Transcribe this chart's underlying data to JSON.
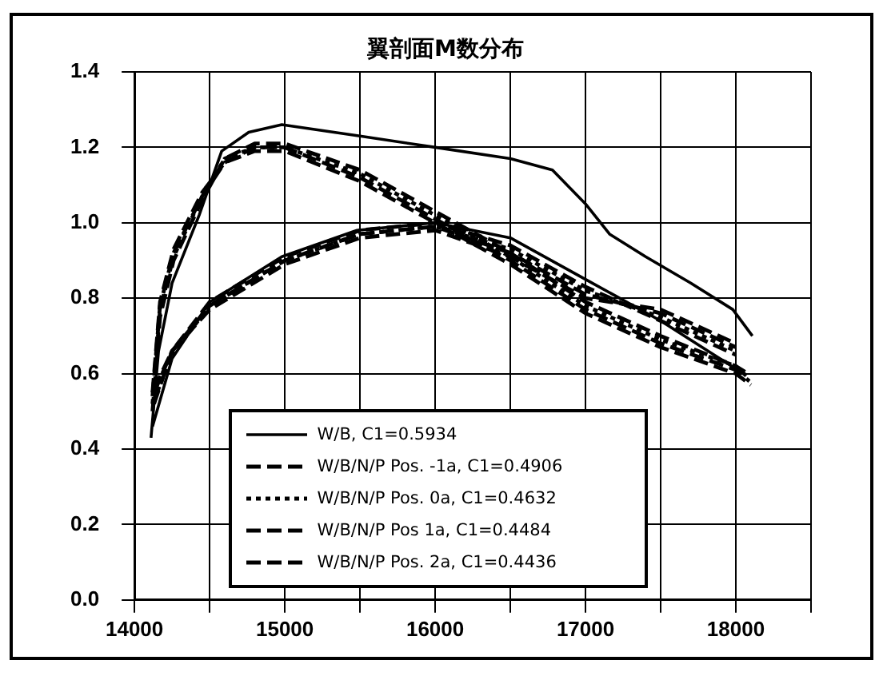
{
  "chart_data": {
    "type": "line",
    "title": "翼剖面M数分布",
    "xlim": [
      14000,
      18500
    ],
    "xticks": [
      14000,
      {
        "value": 14500,
        "label": null
      },
      15000,
      {
        "value": 15500,
        "label": null
      },
      16000,
      {
        "value": 16500,
        "label": null
      },
      17000,
      {
        "value": 17500,
        "label": null
      },
      18000,
      {
        "value": 18500,
        "label": null
      }
    ],
    "ylim": [
      0,
      1.4
    ],
    "yticks": [
      {
        "value": 0,
        "label": "0.0"
      },
      0.2,
      0.4,
      0.6,
      0.8,
      {
        "value": 1,
        "label": "1.0"
      },
      1.2,
      1.4
    ],
    "grid": true,
    "legend": "bottom",
    "marker": "none",
    "series": [
      {
        "name": "W/B, C1=0.5934",
        "color": "#000000",
        "line_style": "solid",
        "x": [
          14110,
          14160,
          14250,
          14430,
          14580,
          14760,
          14980,
          15500,
          16000,
          16500,
          16780,
          17000,
          17160,
          17400,
          17700,
          17980,
          18110
        ],
        "values": [
          0.43,
          0.66,
          0.84,
          1.02,
          1.19,
          1.24,
          1.26,
          1.23,
          1.2,
          1.17,
          1.14,
          1.05,
          0.97,
          0.91,
          0.84,
          0.77,
          0.7
        ]
      },
      {
        "color": "#000000",
        "line_style": "solid",
        "x": [
          14120,
          14250,
          14500,
          14980,
          15480,
          16000,
          16500,
          17000,
          17500,
          18050
        ],
        "values": [
          0.46,
          0.64,
          0.79,
          0.91,
          0.98,
          1.0,
          0.96,
          0.85,
          0.74,
          0.6
        ]
      },
      {
        "name": "W/B/N/P Pos. -1a, C1=0.4906",
        "color": "#000000",
        "line_style": "dashed",
        "x": [
          14120,
          14170,
          14260,
          14450,
          14600,
          14800,
          15000,
          15500,
          16000,
          16500,
          17000,
          17500,
          18000,
          18080
        ],
        "values": [
          0.5,
          0.75,
          0.9,
          1.06,
          1.17,
          1.21,
          1.21,
          1.14,
          1.03,
          0.92,
          0.79,
          0.7,
          0.62,
          0.6
        ]
      },
      {
        "color": "#000000",
        "line_style": "dashed",
        "x": [
          14130,
          14250,
          14500,
          15000,
          15500,
          16000,
          16500,
          17000,
          17500,
          18000
        ],
        "values": [
          0.52,
          0.66,
          0.79,
          0.91,
          0.98,
          1.0,
          0.94,
          0.83,
          0.74,
          0.65
        ]
      },
      {
        "name": "W/B/N/P Pos. 0a, C1=0.4632",
        "color": "#000000",
        "line_style": "dotted",
        "x": [
          14120,
          14170,
          14260,
          14450,
          14600,
          14800,
          15000,
          15500,
          16000,
          16500,
          17000,
          17500,
          18000,
          18080
        ],
        "values": [
          0.52,
          0.77,
          0.91,
          1.07,
          1.17,
          1.2,
          1.2,
          1.13,
          1.02,
          0.91,
          0.78,
          0.69,
          0.62,
          0.59
        ]
      },
      {
        "color": "#000000",
        "line_style": "dotted",
        "x": [
          14130,
          14250,
          14500,
          15000,
          15500,
          16000,
          16500,
          17000,
          17500,
          18000
        ],
        "values": [
          0.53,
          0.65,
          0.78,
          0.9,
          0.97,
          0.99,
          0.93,
          0.82,
          0.75,
          0.66
        ]
      },
      {
        "name": "W/B/N/P Pos 1a, C1=0.4484",
        "color": "#000000",
        "line_style": "dashed",
        "x": [
          14120,
          14170,
          14260,
          14450,
          14600,
          14800,
          15000,
          15500,
          16000,
          16500,
          17000,
          17500,
          18000,
          18090
        ],
        "values": [
          0.54,
          0.78,
          0.92,
          1.07,
          1.16,
          1.2,
          1.2,
          1.12,
          1.01,
          0.9,
          0.77,
          0.68,
          0.61,
          0.58
        ]
      },
      {
        "color": "#000000",
        "line_style": "dashed",
        "x": [
          14130,
          14250,
          14500,
          15000,
          15500,
          16000,
          16500,
          17000,
          17500,
          18000
        ],
        "values": [
          0.55,
          0.66,
          0.78,
          0.9,
          0.97,
          0.99,
          0.92,
          0.81,
          0.76,
          0.67
        ]
      },
      {
        "name": "W/B/N/P Pos. 2a, C1=0.4436",
        "color": "#000000",
        "line_style": "dashed",
        "x": [
          14120,
          14170,
          14260,
          14450,
          14600,
          14800,
          15000,
          15500,
          16000,
          16500,
          17000,
          17500,
          18000,
          18100
        ],
        "values": [
          0.55,
          0.79,
          0.93,
          1.08,
          1.16,
          1.19,
          1.19,
          1.11,
          1.0,
          0.89,
          0.76,
          0.67,
          0.6,
          0.57
        ]
      },
      {
        "color": "#000000",
        "line_style": "dashed",
        "x": [
          14130,
          14250,
          14500,
          15000,
          15500,
          16000,
          16500,
          17000,
          17500,
          18000
        ],
        "values": [
          0.56,
          0.66,
          0.77,
          0.89,
          0.96,
          0.98,
          0.91,
          0.8,
          0.77,
          0.68
        ]
      }
    ]
  }
}
